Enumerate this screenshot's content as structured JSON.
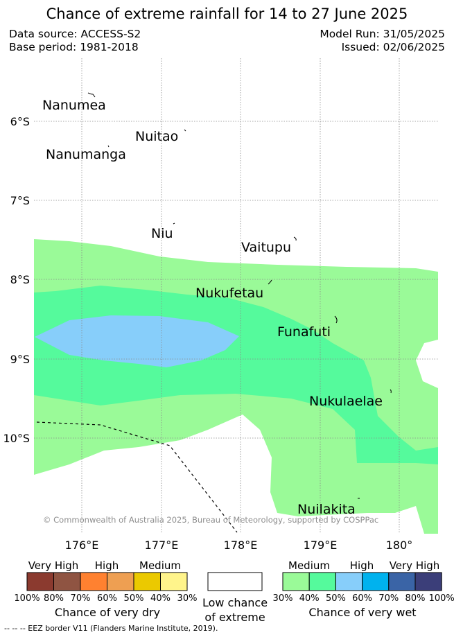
{
  "title": "Chance of extreme rainfall for 14 to 27 June 2025",
  "meta": {
    "data_source": "Data source: ACCESS-S2",
    "base_period": "Base period: 1981-2018",
    "model_run": "Model Run: 31/05/2025",
    "issued": "Issued: 02/06/2025"
  },
  "map": {
    "lat_labels": [
      "6°S",
      "7°S",
      "8°S",
      "9°S",
      "10°S"
    ],
    "lon_labels": [
      "176°E",
      "177°E",
      "178°E",
      "179°E",
      "180°"
    ],
    "places": [
      "Nanumea",
      "Nuitao",
      "Nanumanga",
      "Niu",
      "Vaitupu",
      "Nukufetau",
      "Funafuti",
      "Nukulaelae",
      "Nuilakita"
    ],
    "copyright": "© Commonwealth of Australia 2025, Bureau of Meteorology, supported by COSPPac"
  },
  "legend": {
    "dry": {
      "level_labels": [
        "Very High",
        "High",
        "Medium"
      ],
      "percent_labels": [
        "100%",
        "80%",
        "70%",
        "60%",
        "50%",
        "40%",
        "30%"
      ],
      "colors": [
        "#8b3a2f",
        "#8f5442",
        "#ff8130",
        "#ee9f52",
        "#ebc900",
        "#fff48b"
      ],
      "caption": "Chance of very dry"
    },
    "low": {
      "caption_line1": "Low chance",
      "caption_line2": "of extreme",
      "color": "#ffffff"
    },
    "wet": {
      "level_labels": [
        "Medium",
        "High",
        "Very High"
      ],
      "percent_labels": [
        "30%",
        "40%",
        "50%",
        "60%",
        "70%",
        "80%",
        "100%"
      ],
      "colors": [
        "#9afa98",
        "#55fa9c",
        "#87cefa",
        "#00b2ee",
        "#3a64a6",
        "#3b3e79"
      ],
      "caption": "Chance of very wet"
    }
  },
  "footer": "-- -- -- EEZ border V11 (Flanders Marine Institute, 2019)."
}
